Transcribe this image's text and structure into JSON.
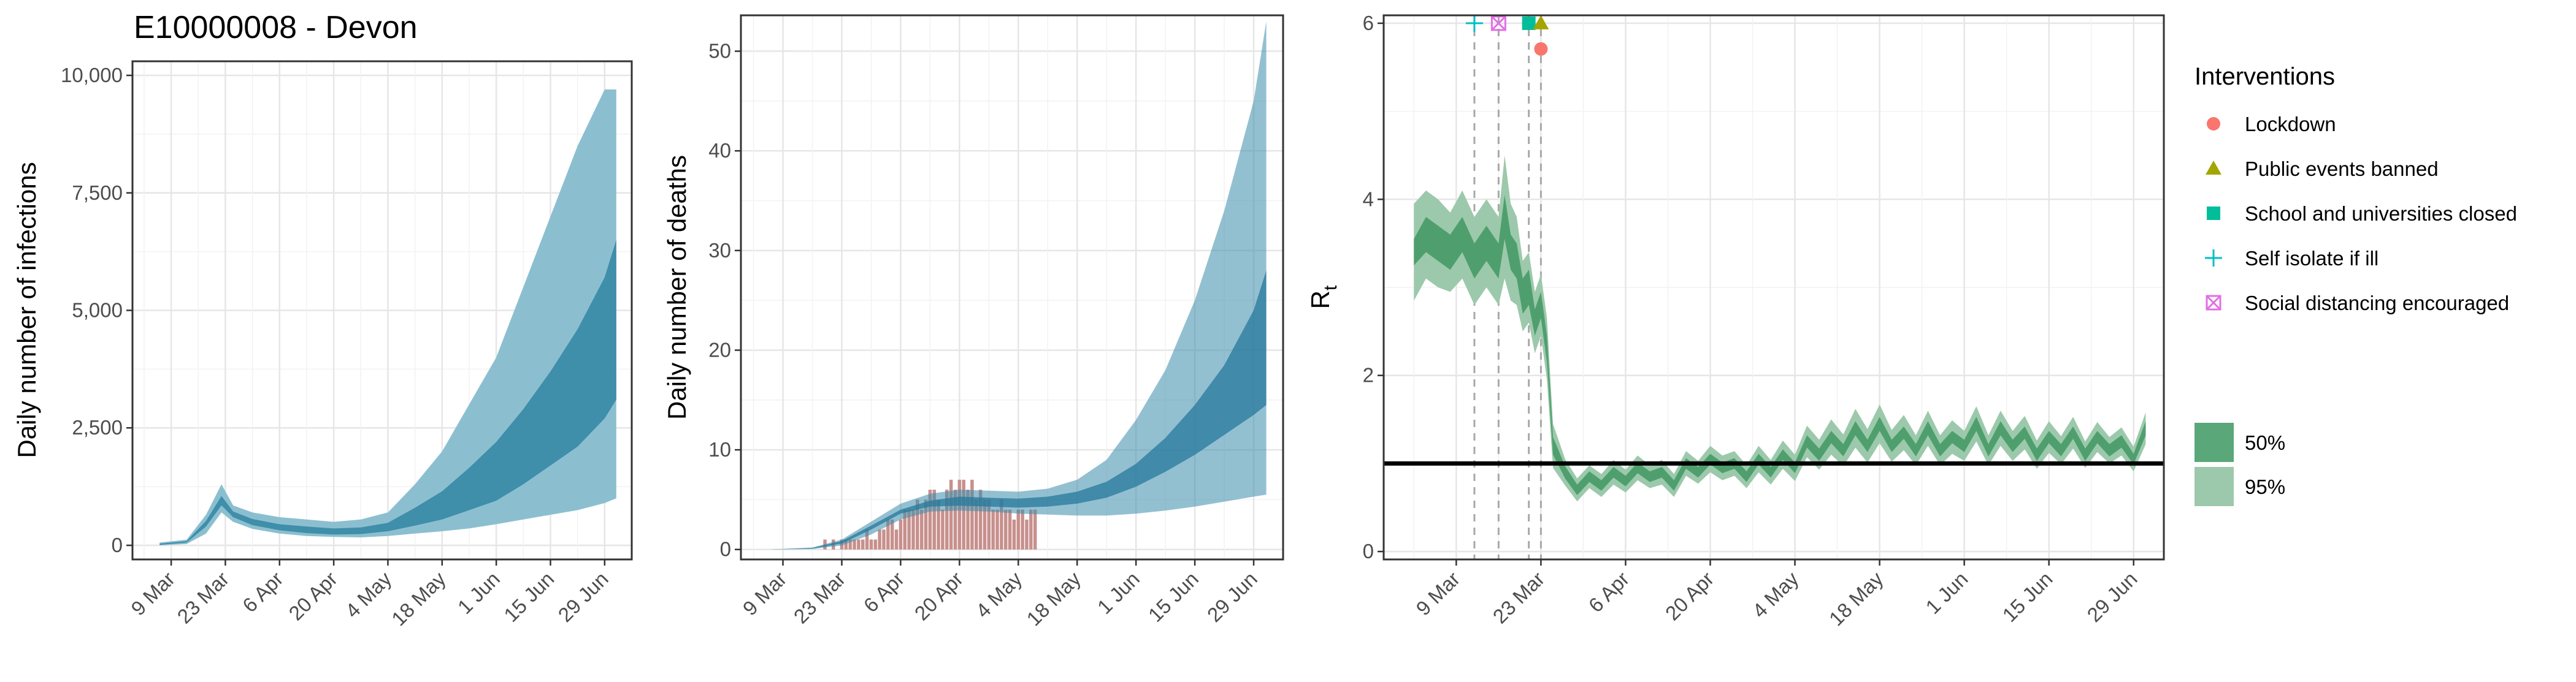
{
  "chart_data": [
    {
      "type": "area",
      "title": "E10000008 - Devon",
      "xlabel": "",
      "ylabel": "Daily number of infections",
      "x_ticks": [
        "9 Mar",
        "23 Mar",
        "6 Apr",
        "20 Apr",
        "4 May",
        "18 May",
        "1 Jun",
        "15 Jun",
        "29 Jun"
      ],
      "y_ticks": [
        "0",
        "2,500",
        "5,000",
        "7,500",
        "10,000"
      ],
      "ylim": [
        0,
        10000
      ],
      "grid": true,
      "series": [
        {
          "color": "#2b8cb0",
          "x": [
            "2020-03-06",
            "2020-03-13",
            "2020-03-18",
            "2020-03-22",
            "2020-03-25",
            "2020-03-30",
            "2020-04-06",
            "2020-04-13",
            "2020-04-20",
            "2020-04-27",
            "2020-05-04",
            "2020-05-11",
            "2020-05-18",
            "2020-05-25",
            "2020-06-01",
            "2020-06-08",
            "2020-06-15",
            "2020-06-22",
            "2020-06-29",
            "2020-07-02"
          ],
          "lower95": [
            0,
            30,
            250,
            700,
            500,
            350,
            250,
            200,
            180,
            170,
            200,
            250,
            300,
            360,
            450,
            550,
            650,
            750,
            900,
            1000
          ],
          "upper95": [
            60,
            120,
            650,
            1300,
            850,
            700,
            600,
            550,
            500,
            550,
            700,
            1300,
            2000,
            3000,
            4000,
            5500,
            7000,
            8500,
            9700,
            9700
          ],
          "lower50": [
            10,
            60,
            400,
            850,
            600,
            430,
            320,
            260,
            230,
            240,
            300,
            420,
            550,
            750,
            950,
            1300,
            1700,
            2100,
            2700,
            3100
          ],
          "upper50": [
            35,
            90,
            520,
            1050,
            720,
            560,
            450,
            400,
            360,
            380,
            480,
            800,
            1150,
            1650,
            2200,
            2900,
            3700,
            4600,
            5700,
            6500
          ]
        }
      ]
    },
    {
      "type": "area",
      "title": "",
      "xlabel": "",
      "ylabel": "Daily number of deaths",
      "x_ticks": [
        "9 Mar",
        "23 Mar",
        "6 Apr",
        "20 Apr",
        "4 May",
        "18 May",
        "1 Jun",
        "15 Jun",
        "29 Jun"
      ],
      "y_ticks": [
        "0",
        "10",
        "20",
        "30",
        "40",
        "50"
      ],
      "ylim": [
        0,
        53
      ],
      "grid": true,
      "series": [
        {
          "color": "#2b8cb0",
          "x": [
            "2020-03-06",
            "2020-03-16",
            "2020-03-23",
            "2020-03-30",
            "2020-04-06",
            "2020-04-13",
            "2020-04-20",
            "2020-04-27",
            "2020-05-04",
            "2020-05-11",
            "2020-05-18",
            "2020-05-25",
            "2020-06-01",
            "2020-06-08",
            "2020-06-15",
            "2020-06-22",
            "2020-06-29",
            "2020-07-02"
          ],
          "lower95": [
            0,
            0.05,
            0.4,
            1.5,
            3.0,
            3.8,
            3.9,
            3.8,
            3.6,
            3.5,
            3.4,
            3.4,
            3.6,
            3.9,
            4.3,
            4.8,
            5.3,
            5.5
          ],
          "upper95": [
            0,
            0.2,
            1.0,
            2.8,
            4.6,
            5.6,
            6.0,
            5.9,
            5.8,
            6.1,
            7.0,
            9.0,
            13,
            18,
            25,
            34,
            45,
            53
          ],
          "lower50": [
            0,
            0.08,
            0.6,
            2.0,
            3.6,
            4.3,
            4.4,
            4.3,
            4.2,
            4.3,
            4.6,
            5.2,
            6.3,
            7.8,
            9.5,
            11.5,
            13.5,
            14.5
          ],
          "upper50": [
            0,
            0.15,
            0.85,
            2.4,
            4.0,
            4.9,
            5.3,
            5.2,
            5.1,
            5.3,
            5.8,
            6.8,
            8.6,
            11.2,
            14.5,
            18.5,
            24,
            28
          ]
        }
      ],
      "bars": {
        "color": "#c7908d",
        "x": [
          "2020-03-19",
          "2020-03-21",
          "2020-03-23",
          "2020-03-24",
          "2020-03-25",
          "2020-03-26",
          "2020-03-27",
          "2020-03-28",
          "2020-03-29",
          "2020-03-30",
          "2020-03-31",
          "2020-04-01",
          "2020-04-02",
          "2020-04-03",
          "2020-04-04",
          "2020-04-05",
          "2020-04-06",
          "2020-04-07",
          "2020-04-08",
          "2020-04-09",
          "2020-04-10",
          "2020-04-11",
          "2020-04-12",
          "2020-04-13",
          "2020-04-14",
          "2020-04-15",
          "2020-04-16",
          "2020-04-17",
          "2020-04-18",
          "2020-04-19",
          "2020-04-20",
          "2020-04-21",
          "2020-04-22",
          "2020-04-23",
          "2020-04-24",
          "2020-04-25",
          "2020-04-26",
          "2020-04-27",
          "2020-04-28",
          "2020-04-29",
          "2020-04-30",
          "2020-05-01",
          "2020-05-02",
          "2020-05-03",
          "2020-05-04",
          "2020-05-05",
          "2020-05-06",
          "2020-05-07",
          "2020-05-08"
        ],
        "values": [
          1,
          1,
          1,
          1,
          1,
          1,
          1,
          1,
          2,
          1,
          1,
          2,
          2,
          3,
          3,
          2,
          3,
          4,
          4,
          4,
          5,
          4,
          5,
          6,
          6,
          5,
          4,
          6,
          7,
          6,
          7,
          7,
          6,
          7,
          5,
          6,
          5,
          5,
          4,
          4,
          5,
          4,
          4,
          3,
          4,
          4,
          3,
          4,
          4
        ]
      }
    },
    {
      "type": "line",
      "title": "",
      "xlabel": "",
      "ylabel": "R",
      "ylabel_sub": "t",
      "x_ticks": [
        "9 Mar",
        "23 Mar",
        "6 Apr",
        "20 Apr",
        "4 May",
        "18 May",
        "1 Jun",
        "15 Jun",
        "29 Jun"
      ],
      "y_ticks": [
        "0",
        "2",
        "4",
        "6"
      ],
      "ylim": [
        0,
        6
      ],
      "grid": true,
      "reference_line": 1,
      "series": [
        {
          "color": "#2ca25f",
          "x": [
            "2020-03-02",
            "2020-03-04",
            "2020-03-06",
            "2020-03-08",
            "2020-03-10",
            "2020-03-12",
            "2020-03-14",
            "2020-03-16",
            "2020-03-17",
            "2020-03-18",
            "2020-03-19",
            "2020-03-20",
            "2020-03-21",
            "2020-03-22",
            "2020-03-23",
            "2020-03-24",
            "2020-03-25",
            "2020-03-27",
            "2020-03-29",
            "2020-03-31",
            "2020-04-02",
            "2020-04-04",
            "2020-04-06",
            "2020-04-08",
            "2020-04-10",
            "2020-04-12",
            "2020-04-14",
            "2020-04-16",
            "2020-04-18",
            "2020-04-20",
            "2020-04-22",
            "2020-04-24",
            "2020-04-26",
            "2020-04-28",
            "2020-04-30",
            "2020-05-02",
            "2020-05-04",
            "2020-05-06",
            "2020-05-08",
            "2020-05-10",
            "2020-05-12",
            "2020-05-14",
            "2020-05-16",
            "2020-05-18",
            "2020-05-20",
            "2020-05-22",
            "2020-05-24",
            "2020-05-26",
            "2020-05-28",
            "2020-05-30",
            "2020-06-01",
            "2020-06-03",
            "2020-06-05",
            "2020-06-07",
            "2020-06-09",
            "2020-06-11",
            "2020-06-13",
            "2020-06-15",
            "2020-06-17",
            "2020-06-19",
            "2020-06-21",
            "2020-06-23",
            "2020-06-25",
            "2020-06-27",
            "2020-06-29",
            "2020-07-01"
          ],
          "median": [
            3.4,
            3.6,
            3.5,
            3.4,
            3.6,
            3.3,
            3.5,
            3.3,
            3.8,
            3.4,
            3.3,
            2.9,
            3.0,
            2.6,
            2.8,
            2.3,
            1.2,
            0.9,
            0.7,
            0.85,
            0.75,
            0.9,
            0.8,
            0.95,
            0.85,
            0.9,
            0.75,
            1.0,
            0.9,
            1.05,
            0.95,
            1.0,
            0.85,
            1.05,
            0.9,
            1.1,
            0.95,
            1.25,
            1.1,
            1.3,
            1.15,
            1.4,
            1.2,
            1.45,
            1.2,
            1.35,
            1.15,
            1.4,
            1.15,
            1.3,
            1.2,
            1.45,
            1.15,
            1.4,
            1.2,
            1.35,
            1.1,
            1.3,
            1.15,
            1.35,
            1.1,
            1.3,
            1.15,
            1.25,
            1.05,
            1.4
          ],
          "half50": [
            0.15,
            0.2,
            0.2,
            0.2,
            0.2,
            0.2,
            0.2,
            0.2,
            0.25,
            0.2,
            0.2,
            0.2,
            0.2,
            0.15,
            0.15,
            0.15,
            0.1,
            0.07,
            0.06,
            0.06,
            0.06,
            0.06,
            0.06,
            0.06,
            0.06,
            0.06,
            0.06,
            0.06,
            0.06,
            0.06,
            0.06,
            0.06,
            0.06,
            0.06,
            0.06,
            0.06,
            0.06,
            0.07,
            0.07,
            0.07,
            0.07,
            0.08,
            0.07,
            0.08,
            0.07,
            0.07,
            0.07,
            0.08,
            0.07,
            0.07,
            0.07,
            0.08,
            0.07,
            0.08,
            0.07,
            0.07,
            0.07,
            0.07,
            0.07,
            0.07,
            0.07,
            0.07,
            0.07,
            0.07,
            0.06,
            0.08
          ],
          "half95": [
            0.55,
            0.5,
            0.5,
            0.45,
            0.5,
            0.5,
            0.5,
            0.5,
            0.7,
            0.55,
            0.5,
            0.4,
            0.4,
            0.35,
            0.35,
            0.35,
            0.25,
            0.15,
            0.13,
            0.13,
            0.13,
            0.14,
            0.13,
            0.14,
            0.13,
            0.14,
            0.13,
            0.14,
            0.13,
            0.15,
            0.14,
            0.14,
            0.13,
            0.15,
            0.14,
            0.16,
            0.15,
            0.18,
            0.17,
            0.2,
            0.18,
            0.22,
            0.19,
            0.22,
            0.18,
            0.2,
            0.17,
            0.2,
            0.17,
            0.19,
            0.17,
            0.2,
            0.17,
            0.2,
            0.17,
            0.19,
            0.16,
            0.18,
            0.16,
            0.18,
            0.15,
            0.17,
            0.15,
            0.16,
            0.14,
            0.18
          ]
        }
      ],
      "interventions": [
        {
          "date": "2020-03-12",
          "label": "Self isolate if ill",
          "shape": "plus",
          "color": "#00bfc4"
        },
        {
          "date": "2020-03-16",
          "label": "Social distancing encouraged",
          "shape": "boxx",
          "color": "#e36ee5"
        },
        {
          "date": "2020-03-21",
          "label": "School and universities closed",
          "shape": "square",
          "color": "#00be9a"
        },
        {
          "date": "2020-03-23",
          "label": "Public events banned",
          "shape": "triangle",
          "color": "#a3a500"
        },
        {
          "date": "2020-03-23",
          "label": "Lockdown",
          "shape": "circle",
          "color": "#f8766d"
        }
      ]
    }
  ],
  "legend": {
    "title": "Interventions",
    "items": [
      {
        "label": "Lockdown",
        "shape": "circle",
        "color": "#f8766d"
      },
      {
        "label": "Public events banned",
        "shape": "triangle",
        "color": "#a3a500"
      },
      {
        "label": "School and universities closed",
        "shape": "square",
        "color": "#00be9a"
      },
      {
        "label": "Self isolate if ill",
        "shape": "plus",
        "color": "#00bfc4"
      },
      {
        "label": "Social distancing encouraged",
        "shape": "boxx",
        "color": "#e36ee5"
      }
    ],
    "bands": [
      {
        "label": "50%",
        "color": "#5aa77a"
      },
      {
        "label": "95%",
        "color": "#9cc9ab"
      }
    ]
  }
}
